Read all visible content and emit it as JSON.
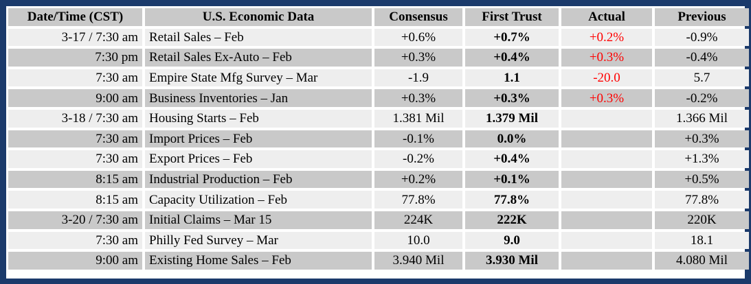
{
  "headers": {
    "time": "Date/Time (CST)",
    "name": "U.S. Economic Data",
    "consensus": "Consensus",
    "first_trust": "First Trust",
    "actual": "Actual",
    "previous": "Previous"
  },
  "colors": {
    "border": "#1b3a6b",
    "row_light": "#eeeeee",
    "row_dark": "#c9c9c9",
    "actual_text": "#ff0000"
  },
  "rows": [
    {
      "time": "3-17 / 7:30 am",
      "name": "Retail Sales – Feb",
      "consensus": "+0.6%",
      "first_trust": "+0.7%",
      "actual": "+0.2%",
      "previous": "-0.9%"
    },
    {
      "time": "7:30 pm",
      "name": "Retail Sales Ex-Auto – Feb",
      "consensus": "+0.3%",
      "first_trust": "+0.4%",
      "actual": "+0.3%",
      "previous": "-0.4%"
    },
    {
      "time": "7:30 am",
      "name": "Empire State Mfg Survey – Mar",
      "consensus": "-1.9",
      "first_trust": "1.1",
      "actual": "-20.0",
      "previous": "5.7"
    },
    {
      "time": "9:00 am",
      "name": "Business Inventories – Jan",
      "consensus": "+0.3%",
      "first_trust": "+0.3%",
      "actual": "+0.3%",
      "previous": "-0.2%"
    },
    {
      "time": "3-18 / 7:30 am",
      "name": "Housing Starts – Feb",
      "consensus": "1.381 Mil",
      "first_trust": "1.379 Mil",
      "actual": "",
      "previous": "1.366 Mil"
    },
    {
      "time": "7:30 am",
      "name": "Import Prices – Feb",
      "consensus": "-0.1%",
      "first_trust": "0.0%",
      "actual": "",
      "previous": "+0.3%"
    },
    {
      "time": "7:30 am",
      "name": "Export Prices – Feb",
      "consensus": "-0.2%",
      "first_trust": "+0.4%",
      "actual": "",
      "previous": "+1.3%"
    },
    {
      "time": "8:15 am",
      "name": "Industrial Production – Feb",
      "consensus": "+0.2%",
      "first_trust": "+0.1%",
      "actual": "",
      "previous": "+0.5%"
    },
    {
      "time": "8:15 am",
      "name": "Capacity Utilization – Feb",
      "consensus": "77.8%",
      "first_trust": "77.8%",
      "actual": "",
      "previous": "77.8%"
    },
    {
      "time": "3-20 / 7:30 am",
      "name": "Initial Claims – Mar 15",
      "consensus": "224K",
      "first_trust": "222K",
      "actual": "",
      "previous": "220K"
    },
    {
      "time": "7:30 am",
      "name": "Philly Fed Survey – Mar",
      "consensus": "10.0",
      "first_trust": "9.0",
      "actual": "",
      "previous": "18.1"
    },
    {
      "time": "9:00 am",
      "name": "Existing Home Sales – Feb",
      "consensus": "3.940 Mil",
      "first_trust": "3.930 Mil",
      "actual": "",
      "previous": "4.080 Mil"
    }
  ]
}
